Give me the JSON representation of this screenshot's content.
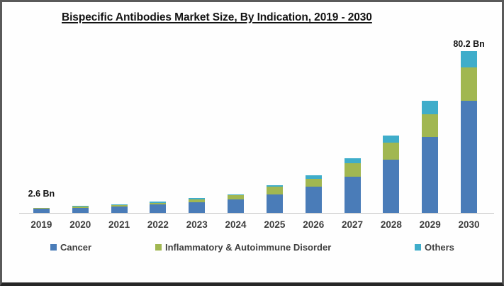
{
  "title": "Bispecific Antibodies Market Size, By Indication, 2019 - 2030",
  "chart_data": {
    "type": "bar",
    "stacked": true,
    "title": "Bispecific Antibodies Market Size, By Indication, 2019 - 2030",
    "unit": "Bn",
    "categories": [
      "2019",
      "2020",
      "2021",
      "2022",
      "2023",
      "2024",
      "2025",
      "2026",
      "2027",
      "2028",
      "2029",
      "2030"
    ],
    "series": [
      {
        "name": "Cancer",
        "color": "#4a7cb8",
        "values": [
          2.0,
          2.55,
          3.2,
          4.1,
          5.3,
          6.6,
          9.2,
          12.9,
          17.8,
          26.5,
          37.8,
          55.7
        ]
      },
      {
        "name": "Inflammatory & Autoimmune Disorder",
        "color": "#a1b751",
        "values": [
          0.35,
          0.55,
          0.75,
          1.0,
          1.5,
          2.1,
          3.8,
          4.0,
          6.7,
          8.2,
          11.2,
          16.5
        ]
      },
      {
        "name": "Others",
        "color": "#3fadca",
        "values": [
          0.25,
          0.3,
          0.35,
          0.4,
          0.5,
          0.6,
          0.7,
          1.7,
          2.6,
          3.6,
          6.5,
          8.0
        ]
      }
    ],
    "totals": [
      2.6,
      3.4,
      4.3,
      5.5,
      7.3,
      9.3,
      13.7,
      18.6,
      27.1,
      38.3,
      55.5,
      80.2
    ],
    "annotations": [
      {
        "category": "2019",
        "text": "2.6 Bn"
      },
      {
        "category": "2030",
        "text": "80.2 Bn"
      }
    ],
    "xlabel": "",
    "ylabel": "",
    "ylim": [
      0,
      85
    ],
    "y_axis_visible": false,
    "grid": false,
    "legend_position": "bottom"
  },
  "colors": {
    "axis_line": "#c9c9c9",
    "label_text": "#3f3f3f",
    "title_text": "#141414"
  }
}
